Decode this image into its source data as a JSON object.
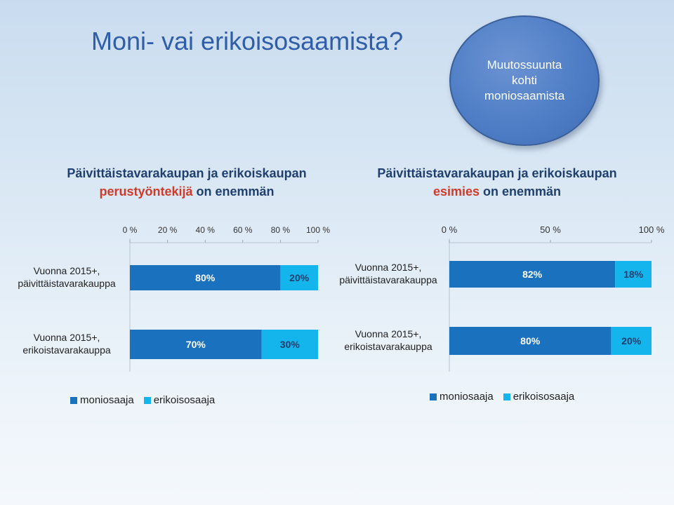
{
  "slide": {
    "title": "Moni- vai erikoisosaamista?",
    "callout_lines": [
      "Muutossuunta",
      "kohti",
      "moniosaamista"
    ]
  },
  "colors": {
    "moniosaaja": "#1a71bd",
    "erikoisosaaja": "#14b4ec",
    "label_on_dark": "#ffffff",
    "label_on_light": "#1f3f6e"
  },
  "chart_data": [
    {
      "type": "bar",
      "orientation": "horizontal",
      "stacked": true,
      "title_line1": "Päivittäistavarakaupan ja erikoiskaupan",
      "title_highlight": "perustyöntekijä",
      "title_rest": " on enemmän",
      "categories": [
        "Vuonna 2015+, päivittäistavarakauppa",
        "Vuonna 2015+, erikoistavarakauppa"
      ],
      "category_lines": [
        [
          "Vuonna 2015+,",
          "päivittäistavarakauppa"
        ],
        [
          "Vuonna 2015+,",
          "erikoistavarakauppa"
        ]
      ],
      "series": [
        {
          "name": "moniosaaja",
          "values": [
            80,
            70
          ],
          "labels": [
            "80%",
            "70%"
          ]
        },
        {
          "name": "erikoisosaaja",
          "values": [
            20,
            30
          ],
          "labels": [
            "20%",
            "30%"
          ]
        }
      ],
      "xlim": [
        0,
        100
      ],
      "xticks": [
        0,
        20,
        40,
        60,
        80,
        100
      ],
      "xtick_labels": [
        "0 %",
        "20 %",
        "40 %",
        "60 %",
        "80 %",
        "100 %"
      ],
      "axis_position": "top",
      "legend": "bottom"
    },
    {
      "type": "bar",
      "orientation": "horizontal",
      "stacked": true,
      "title_line1": "Päivittäistavarakaupan ja erikoiskaupan",
      "title_highlight": "esimies",
      "title_rest": " on enemmän",
      "categories": [
        "Vuonna 2015+, päivittäistavarakauppa",
        "Vuonna 2015+, erikoistavarakauppa"
      ],
      "category_lines": [
        [
          "Vuonna 2015+,",
          "päivittäistavarakauppa"
        ],
        [
          "Vuonna 2015+,",
          "erikoistavarakauppa"
        ]
      ],
      "series": [
        {
          "name": "moniosaaja",
          "values": [
            82,
            80
          ],
          "labels": [
            "82%",
            "80%"
          ]
        },
        {
          "name": "erikoisosaaja",
          "values": [
            18,
            20
          ],
          "labels": [
            "18%",
            "20%"
          ]
        }
      ],
      "xlim": [
        0,
        100
      ],
      "xticks": [
        0,
        50,
        100
      ],
      "xtick_labels": [
        "0 %",
        "50 %",
        "100 %"
      ],
      "axis_position": "top",
      "legend": "bottom"
    }
  ]
}
